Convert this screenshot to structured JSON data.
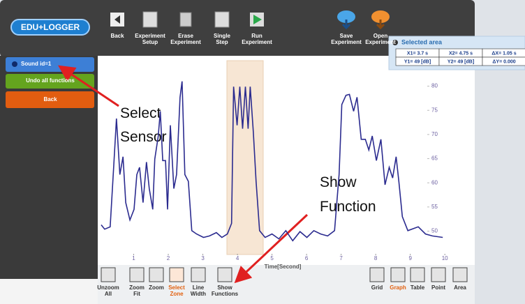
{
  "logo": "EDU+LOGGER",
  "toolbar": [
    "Back",
    "Experiment Setup",
    "Erase Experiment",
    "Single Step",
    "Run Experiment",
    "Save Experiment",
    "Open Experiment"
  ],
  "side_buttons": [
    "Sound id=1",
    "Undo all functions",
    "Back"
  ],
  "selected_area": {
    "title": "Selected area",
    "rows": [
      [
        "X1= 3.7 s",
        "X2= 4.75 s",
        "ΔX= 1.05 s"
      ],
      [
        "Y1= 49 [dB]",
        "Y2= 49 [dB]",
        "ΔY= 0.000"
      ]
    ]
  },
  "graph": {
    "x_label": "Time[Second]",
    "xlim": [
      0,
      10.4
    ],
    "ylim": [
      43,
      86
    ],
    "xticks": [
      1,
      2,
      3,
      4,
      5,
      6,
      7,
      8,
      9,
      10
    ],
    "yticks": [
      50,
      55,
      60,
      65,
      70,
      75,
      80
    ],
    "color": "#2b2b8f",
    "x": [
      0.06,
      0.16,
      0.32,
      0.42,
      0.5,
      0.6,
      0.69,
      0.77,
      0.89,
      1.01,
      1.09,
      1.17,
      1.27,
      1.37,
      1.45,
      1.55,
      1.61,
      1.71,
      1.77,
      1.84,
      1.92,
      1.98,
      2.06,
      2.16,
      2.24,
      2.34,
      2.4,
      2.48,
      2.58,
      2.68,
      2.82,
      3.02,
      3.19,
      3.39,
      3.55,
      3.71,
      3.83,
      3.89,
      3.99,
      4.07,
      4.15,
      4.23,
      4.31,
      4.37,
      4.46,
      4.54,
      4.64,
      4.8,
      5.0,
      5.2,
      5.4,
      5.6,
      5.81,
      6.01,
      6.21,
      6.41,
      6.61,
      6.81,
      6.94,
      7.02,
      7.14,
      7.24,
      7.36,
      7.46,
      7.58,
      7.7,
      7.8,
      7.9,
      8.02,
      8.15,
      8.27,
      8.39,
      8.49,
      8.59,
      8.67,
      8.77,
      8.93,
      9.23,
      9.44,
      9.64,
      9.94
    ],
    "values": [
      51.3,
      50.4,
      50.9,
      63.2,
      73.3,
      61.7,
      65.4,
      55.9,
      52.3,
      54.5,
      61.7,
      63.2,
      55.9,
      64.3,
      58.8,
      54.5,
      64.9,
      69.7,
      74.8,
      64.6,
      64.6,
      54.5,
      71.9,
      58.8,
      61.7,
      77.7,
      81.0,
      61.7,
      60.3,
      50.1,
      49.4,
      48.7,
      49.0,
      49.7,
      48.7,
      49.4,
      51.6,
      79.9,
      71.9,
      79.9,
      71.2,
      79.9,
      71.2,
      79.9,
      70.4,
      60.3,
      50.1,
      48.7,
      49.4,
      48.4,
      50.1,
      48.0,
      49.9,
      48.7,
      50.1,
      49.4,
      49.0,
      50.1,
      61.7,
      76.2,
      78.1,
      78.3,
      74.8,
      77.7,
      69.0,
      69.0,
      66.8,
      69.7,
      64.6,
      69.0,
      59.6,
      63.2,
      61.0,
      65.4,
      60.3,
      53.0,
      50.1,
      50.9,
      49.4,
      49.0,
      48.7
    ]
  },
  "bottom_tools": [
    "Unzoom All",
    "Zoom Fit",
    "Zoom",
    "Select Zone",
    "Line Width",
    "Show Functions"
  ],
  "view_tools": [
    "Grid",
    "Graph",
    "Table",
    "Point",
    "Area"
  ],
  "annotations": [
    "Select Sensor",
    "Show Function"
  ]
}
